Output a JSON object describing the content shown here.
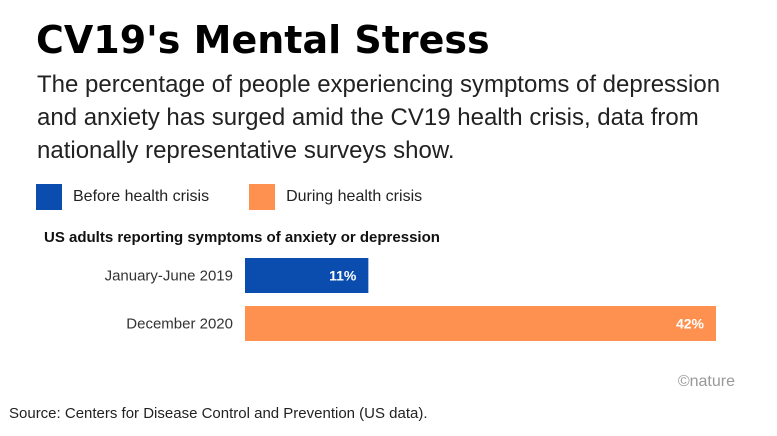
{
  "header": {
    "title": "CV19's Mental Stress",
    "subtitle": "The percentage of people experiencing symptoms of depression and anxiety has surged amid the CV19 health crisis, data from nationally representative surveys show."
  },
  "legend": {
    "items": [
      {
        "label": "Before health crisis",
        "color": "#0A4DAE"
      },
      {
        "label": "During health crisis",
        "color": "#FF9150"
      }
    ]
  },
  "chart_data": {
    "type": "bar",
    "orientation": "horizontal",
    "title": "US adults reporting symptoms of anxiety or depression",
    "categories": [
      "January-June 2019",
      "December 2020"
    ],
    "values": [
      11,
      42
    ],
    "value_labels": [
      "11%",
      "42%"
    ],
    "colors": [
      "#0A4DAE",
      "#FF9150"
    ],
    "unit": "%",
    "xlim": [
      0,
      42
    ],
    "grid": false
  },
  "footer": {
    "brand": "©nature",
    "source": "Source: Centers for Disease Control and Prevention (US data)."
  }
}
